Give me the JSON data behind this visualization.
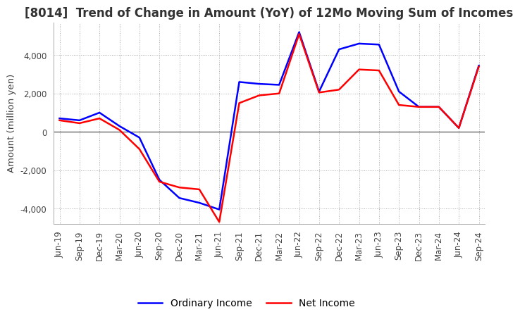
{
  "title": "[8014]  Trend of Change in Amount (YoY) of 12Mo Moving Sum of Incomes",
  "ylabel": "Amount (million yen)",
  "ylim": [
    -4800,
    5700
  ],
  "yticks": [
    -4000,
    -2000,
    0,
    2000,
    4000
  ],
  "x_labels": [
    "Jun-19",
    "Sep-19",
    "Dec-19",
    "Mar-20",
    "Jun-20",
    "Sep-20",
    "Dec-20",
    "Mar-21",
    "Jun-21",
    "Sep-21",
    "Dec-21",
    "Mar-22",
    "Jun-22",
    "Sep-22",
    "Dec-22",
    "Mar-23",
    "Jun-23",
    "Sep-23",
    "Dec-23",
    "Mar-24",
    "Jun-24",
    "Sep-24"
  ],
  "ordinary_income": [
    700,
    600,
    1000,
    300,
    -300,
    -2500,
    -3450,
    -3700,
    -4050,
    2600,
    2500,
    2450,
    5200,
    2100,
    4300,
    4600,
    4550,
    2100,
    1300,
    1300,
    200,
    3450
  ],
  "net_income": [
    600,
    450,
    700,
    100,
    -900,
    -2600,
    -2900,
    -3000,
    -4700,
    1500,
    1900,
    2000,
    5100,
    2050,
    2200,
    3250,
    3200,
    1400,
    1300,
    1300,
    200,
    3400
  ],
  "ordinary_color": "#0000ff",
  "net_color": "#ff0000",
  "grid_color": "#aaaaaa",
  "zero_line_color": "#555555",
  "background_color": "#ffffff",
  "title_fontsize": 12,
  "label_fontsize": 9.5,
  "tick_fontsize": 8.5,
  "legend_fontsize": 10,
  "line_width": 1.8
}
